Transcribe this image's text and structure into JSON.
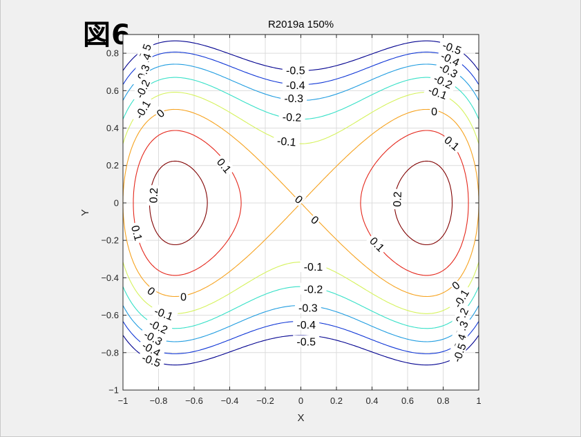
{
  "figure_label": "図6",
  "chart_data": {
    "type": "contour",
    "title": "R2019a 150%",
    "xlabel": "X",
    "ylabel": "Y",
    "xlim": [
      -1,
      1
    ],
    "ylim": [
      -1,
      0.9
    ],
    "grid": true,
    "x_ticks": [
      -1,
      -0.8,
      -0.6,
      -0.4,
      -0.2,
      0,
      0.2,
      0.4,
      0.6,
      0.8,
      1
    ],
    "x_tick_labels": [
      "−1",
      "−0.8",
      "−0.6",
      "−0.4",
      "−0.2",
      "0",
      "0.2",
      "0.4",
      "0.6",
      "0.8",
      "1"
    ],
    "y_ticks": [
      -1,
      -0.8,
      -0.6,
      -0.4,
      -0.2,
      0,
      0.2,
      0.4,
      0.6,
      0.8
    ],
    "y_tick_labels": [
      "−1",
      "−0.8",
      "−0.6",
      "−0.4",
      "−0.2",
      "0",
      "0.2",
      "0.4",
      "0.6",
      "0.8"
    ],
    "levels": [
      -0.5,
      -0.4,
      -0.3,
      -0.2,
      -0.1,
      0,
      0.1,
      0.2
    ],
    "level_colors": {
      "-0.5": "#00008f",
      "-0.4": "#0f36d6",
      "-0.3": "#1f9ce0",
      "-0.2": "#35e0c7",
      "-0.1": "#d5f25c",
      "0": "#f6a21e",
      "0.1": "#e4261a",
      "0.2": "#800000"
    },
    "labels": [
      {
        "text": "-0.5",
        "x": -0.88,
        "y": 0.8,
        "angle": -70
      },
      {
        "text": "-0.4",
        "x": -0.88,
        "y": 0.75,
        "angle": -70
      },
      {
        "text": "-0.3",
        "x": -0.89,
        "y": 0.69,
        "angle": -68
      },
      {
        "text": "-0.2",
        "x": -0.89,
        "y": 0.61,
        "angle": -65
      },
      {
        "text": "-0.1",
        "x": -0.89,
        "y": 0.5,
        "angle": -60
      },
      {
        "text": "0",
        "x": -0.79,
        "y": 0.48,
        "angle": -40
      },
      {
        "text": "0.1",
        "x": -0.43,
        "y": 0.2,
        "angle": 50
      },
      {
        "text": "0.2",
        "x": -0.83,
        "y": 0.04,
        "angle": -88
      },
      {
        "text": "0.1",
        "x": -0.92,
        "y": -0.16,
        "angle": 75
      },
      {
        "text": "0",
        "x": -0.84,
        "y": -0.47,
        "angle": 38
      },
      {
        "text": "0",
        "x": -0.66,
        "y": -0.5,
        "angle": 0
      },
      {
        "text": "-0.1",
        "x": -0.77,
        "y": -0.59,
        "angle": 20
      },
      {
        "text": "-0.2",
        "x": -0.8,
        "y": -0.66,
        "angle": 25
      },
      {
        "text": "-0.3",
        "x": -0.83,
        "y": -0.72,
        "angle": 28
      },
      {
        "text": "-0.4",
        "x": -0.84,
        "y": -0.78,
        "angle": 30
      },
      {
        "text": "-0.5",
        "x": -0.84,
        "y": -0.84,
        "angle": 20
      },
      {
        "text": "-0.5",
        "x": -0.03,
        "y": 0.71,
        "angle": 0
      },
      {
        "text": "-0.4",
        "x": -0.03,
        "y": 0.63,
        "angle": 0
      },
      {
        "text": "-0.3",
        "x": -0.04,
        "y": 0.56,
        "angle": 0
      },
      {
        "text": "-0.2",
        "x": -0.05,
        "y": 0.46,
        "angle": 2
      },
      {
        "text": "-0.1",
        "x": -0.08,
        "y": 0.33,
        "angle": 5
      },
      {
        "text": "0",
        "x": -0.01,
        "y": 0.02,
        "angle": 40
      },
      {
        "text": "0",
        "x": 0.08,
        "y": -0.09,
        "angle": 40
      },
      {
        "text": "-0.1",
        "x": 0.07,
        "y": -0.34,
        "angle": 0
      },
      {
        "text": "-0.2",
        "x": 0.07,
        "y": -0.46,
        "angle": 0
      },
      {
        "text": "-0.3",
        "x": 0.04,
        "y": -0.56,
        "angle": 0
      },
      {
        "text": "-0.4",
        "x": 0.03,
        "y": -0.65,
        "angle": 0
      },
      {
        "text": "-0.5",
        "x": 0.03,
        "y": -0.74,
        "angle": 0
      },
      {
        "text": "-0.5",
        "x": 0.85,
        "y": 0.83,
        "angle": 20
      },
      {
        "text": "-0.4",
        "x": 0.84,
        "y": 0.77,
        "angle": 25
      },
      {
        "text": "-0.3",
        "x": 0.83,
        "y": 0.71,
        "angle": 28
      },
      {
        "text": "-0.2",
        "x": 0.8,
        "y": 0.65,
        "angle": 25
      },
      {
        "text": "-0.1",
        "x": 0.77,
        "y": 0.59,
        "angle": 20
      },
      {
        "text": "0",
        "x": 0.75,
        "y": 0.49,
        "angle": 0
      },
      {
        "text": "0.1",
        "x": 0.85,
        "y": 0.32,
        "angle": 40
      },
      {
        "text": "0.2",
        "x": 0.54,
        "y": 0.02,
        "angle": -88
      },
      {
        "text": "0.1",
        "x": 0.43,
        "y": -0.22,
        "angle": 45
      },
      {
        "text": "0",
        "x": 0.87,
        "y": -0.44,
        "angle": -40
      },
      {
        "text": "-0.1",
        "x": 0.9,
        "y": -0.51,
        "angle": -60
      },
      {
        "text": "-0.2",
        "x": 0.9,
        "y": -0.61,
        "angle": -65
      },
      {
        "text": "-0.3",
        "x": 0.9,
        "y": -0.68,
        "angle": -68
      },
      {
        "text": "-0.4",
        "x": 0.89,
        "y": -0.75,
        "angle": -70
      },
      {
        "text": "-0.5",
        "x": 0.89,
        "y": -0.8,
        "angle": -70
      }
    ]
  }
}
